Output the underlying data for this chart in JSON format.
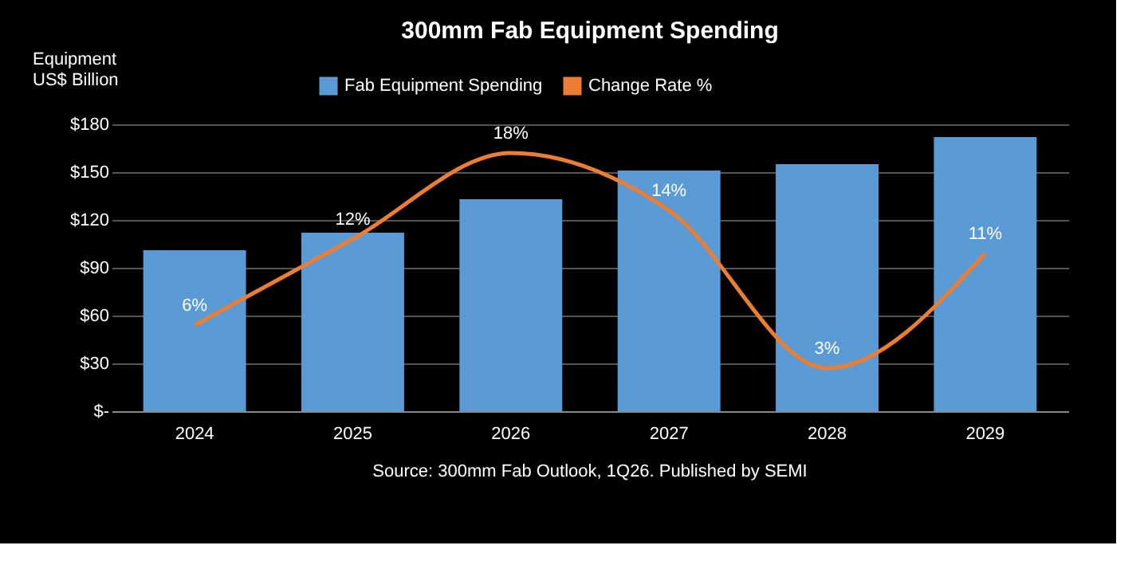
{
  "chart_data": {
    "type": "bar",
    "title": "300mm Fab Equipment Spending",
    "ylabel": "Equipment US$ Billion",
    "categories": [
      "2024",
      "2025",
      "2026",
      "2027",
      "2028",
      "2029"
    ],
    "series": [
      {
        "name": "Fab Equipment Spending",
        "color": "#5b9bd5",
        "values": [
          101,
          112,
          133,
          151,
          155,
          172
        ]
      },
      {
        "name": "Change Rate %",
        "type": "line",
        "axis": "y2",
        "color": "#ed7d31",
        "values": [
          6,
          12,
          18,
          14,
          3,
          11
        ],
        "value_labels": [
          "6%",
          "12%",
          "18%",
          "14%",
          "3%",
          "11%"
        ]
      }
    ],
    "ylim": [
      0,
      180
    ],
    "yticks": [
      {
        "value": 0,
        "label": "$-"
      },
      {
        "value": 30,
        "label": "$30"
      },
      {
        "value": 60,
        "label": "$60"
      },
      {
        "value": 90,
        "label": "$90"
      },
      {
        "value": 120,
        "label": "$120"
      },
      {
        "value": 150,
        "label": "$150"
      },
      {
        "value": 180,
        "label": "$180"
      }
    ],
    "y2lim": [
      0,
      20
    ],
    "grid": "y",
    "legend": "top",
    "annotations": [
      "Source: 300mm Fab Outlook, 1Q26. Published by SEMI"
    ]
  }
}
